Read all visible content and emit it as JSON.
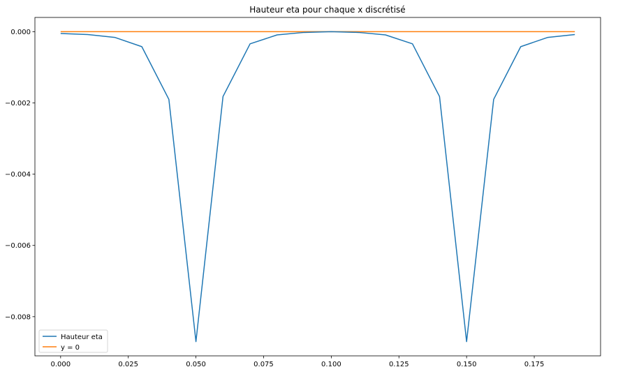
{
  "chart_data": {
    "type": "line",
    "title": "Hauteur eta pour chaque x discrétisé",
    "xlabel": "",
    "ylabel": "",
    "xlim": [
      -0.0095,
      0.1995
    ],
    "ylim": [
      -0.0091,
      0.0004
    ],
    "xticks": [
      0.0,
      0.025,
      0.05,
      0.075,
      0.1,
      0.125,
      0.15,
      0.175
    ],
    "xtick_labels": [
      "0.000",
      "0.025",
      "0.050",
      "0.075",
      "0.100",
      "0.125",
      "0.150",
      "0.175"
    ],
    "yticks": [
      0.0,
      -0.002,
      -0.004,
      -0.006,
      -0.008
    ],
    "ytick_labels": [
      "0.000",
      "−0.002",
      "−0.004",
      "−0.006",
      "−0.008"
    ],
    "grid": false,
    "legend_position": "lower-left",
    "x": [
      0.0,
      0.01,
      0.02,
      0.03,
      0.04,
      0.05,
      0.06,
      0.07,
      0.08,
      0.09,
      0.1,
      0.11,
      0.12,
      0.13,
      0.14,
      0.15,
      0.16,
      0.17,
      0.18,
      0.19
    ],
    "series": [
      {
        "name": "Hauteur eta",
        "color": "#1f77b4",
        "values": [
          -5e-05,
          -8e-05,
          -0.00016,
          -0.00042,
          -0.0019,
          -0.0087,
          -0.00182,
          -0.00034,
          -9e-05,
          -2e-05,
          0.0,
          -2e-05,
          -9e-05,
          -0.00034,
          -0.00182,
          -0.0087,
          -0.0019,
          -0.00042,
          -0.00016,
          -8e-05
        ]
      },
      {
        "name": "y = 0",
        "color": "#ff7f0e",
        "values": [
          0.0,
          0.0,
          0.0,
          0.0,
          0.0,
          0.0,
          0.0,
          0.0,
          0.0,
          0.0,
          0.0,
          0.0,
          0.0,
          0.0,
          0.0,
          0.0,
          0.0,
          0.0,
          0.0,
          0.0
        ]
      }
    ]
  }
}
